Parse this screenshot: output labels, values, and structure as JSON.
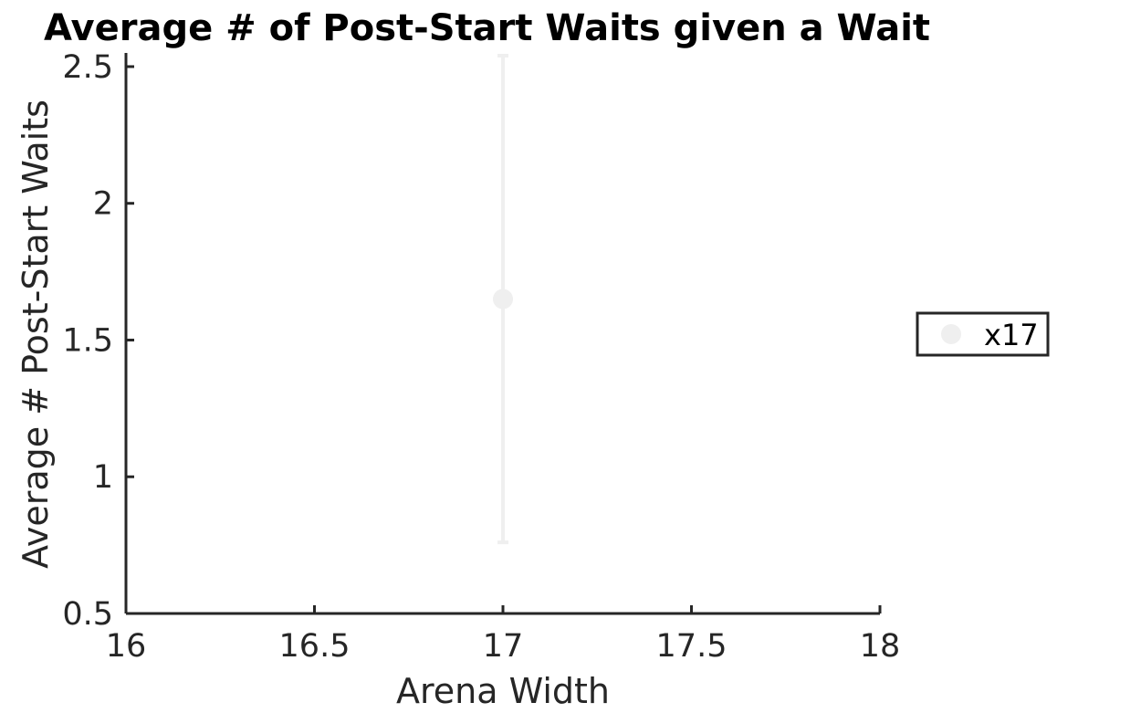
{
  "chart_data": {
    "type": "scatter",
    "title": "Average # of Post-Start Waits given a Wait",
    "xlabel": "Arena Width",
    "ylabel": "Average # Post-Start Waits",
    "xlim": [
      16,
      18
    ],
    "ylim": [
      0.5,
      2.55
    ],
    "xticks": [
      16,
      16.5,
      17,
      17.5,
      18
    ],
    "xtick_labels": [
      "16",
      "16.5",
      "17",
      "17.5",
      "18"
    ],
    "yticks": [
      0.5,
      1,
      1.5,
      2,
      2.5
    ],
    "ytick_labels": [
      "0.5",
      "1",
      "1.5",
      "2",
      "2.5"
    ],
    "grid": false,
    "legend_position": "right",
    "series": [
      {
        "name": "x17",
        "color": "#efefef",
        "points": [
          {
            "x": 17,
            "y": 1.65,
            "err_low": 0.76,
            "err_high": 2.54
          }
        ]
      }
    ]
  }
}
